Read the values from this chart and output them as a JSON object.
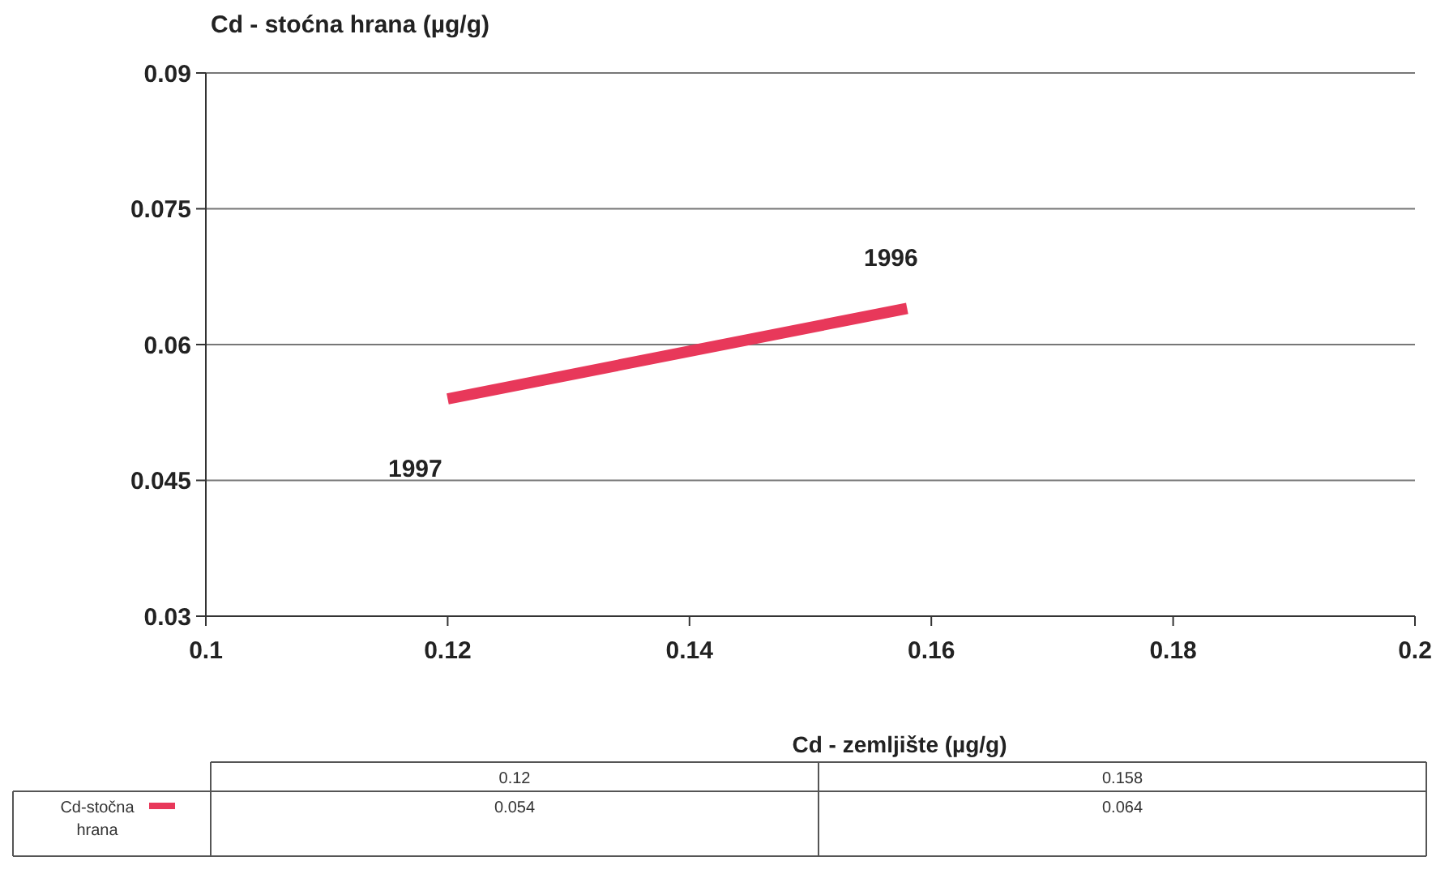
{
  "chart_data": {
    "type": "line",
    "title": "Cd - stoćna hrana  (µg/g)",
    "xlabel": "Cd - zemljište (µg/g)",
    "x": [
      0.12,
      0.158
    ],
    "series": [
      {
        "name": "Cd-stočna hrana",
        "color": "#e8385a",
        "values": [
          0.054,
          0.064
        ]
      }
    ],
    "xlim": [
      0.1,
      0.2
    ],
    "xticks": [
      0.1,
      0.12,
      0.14,
      0.16,
      0.18,
      0.2
    ],
    "ylim": [
      0.03,
      0.09
    ],
    "yticks": [
      0.03,
      0.045,
      0.06,
      0.075,
      0.09
    ],
    "annotations": [
      {
        "text": "1997",
        "x": 0.12,
        "y": 0.054
      },
      {
        "text": "1996",
        "x": 0.158,
        "y": 0.064
      },
      "0.12",
      "0.158",
      "0.054",
      "0.064"
    ],
    "grid": "y",
    "legend": "bottom",
    "marker": "none",
    "line_style": "solid"
  }
}
